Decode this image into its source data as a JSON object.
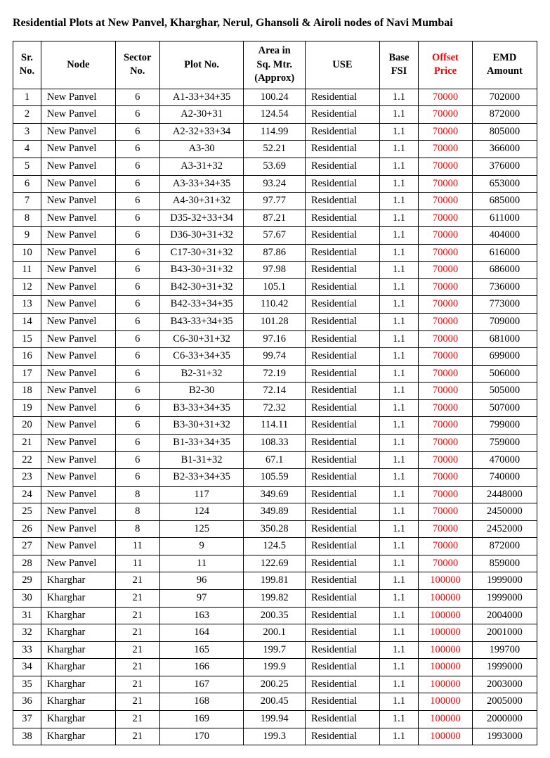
{
  "title": "Residential Plots at New Panvel, Kharghar, Nerul, Ghansoli & Airoli nodes of Navi Mumbai",
  "table": {
    "headers": {
      "sr": "Sr. No.",
      "node": "Node",
      "sector": "Sector No.",
      "plot": "Plot No.",
      "area": "Area in Sq. Mtr. (Approx)",
      "use": "USE",
      "fsi": "Base FSI",
      "offset": "Offset Price",
      "emd": "EMD Amount"
    },
    "offset_color": "#ff0000",
    "rows": [
      {
        "sr": 1,
        "node": "New Panvel",
        "sector": 6,
        "plot": "A1-33+34+35",
        "area": "100.24",
        "use": "Residential",
        "fsi": "1.1",
        "offset": "70000",
        "emd": "702000"
      },
      {
        "sr": 2,
        "node": "New Panvel",
        "sector": 6,
        "plot": "A2-30+31",
        "area": "124.54",
        "use": "Residential",
        "fsi": "1.1",
        "offset": "70000",
        "emd": "872000"
      },
      {
        "sr": 3,
        "node": "New Panvel",
        "sector": 6,
        "plot": "A2-32+33+34",
        "area": "114.99",
        "use": "Residential",
        "fsi": "1.1",
        "offset": "70000",
        "emd": "805000"
      },
      {
        "sr": 4,
        "node": "New Panvel",
        "sector": 6,
        "plot": "A3-30",
        "area": "52.21",
        "use": "Residential",
        "fsi": "1.1",
        "offset": "70000",
        "emd": "366000"
      },
      {
        "sr": 5,
        "node": "New Panvel",
        "sector": 6,
        "plot": "A3-31+32",
        "area": "53.69",
        "use": "Residential",
        "fsi": "1.1",
        "offset": "70000",
        "emd": "376000"
      },
      {
        "sr": 6,
        "node": "New Panvel",
        "sector": 6,
        "plot": "A3-33+34+35",
        "area": "93.24",
        "use": "Residential",
        "fsi": "1.1",
        "offset": "70000",
        "emd": "653000"
      },
      {
        "sr": 7,
        "node": "New Panvel",
        "sector": 6,
        "plot": "A4-30+31+32",
        "area": "97.77",
        "use": "Residential",
        "fsi": "1.1",
        "offset": "70000",
        "emd": "685000"
      },
      {
        "sr": 8,
        "node": "New Panvel",
        "sector": 6,
        "plot": "D35-32+33+34",
        "area": "87.21",
        "use": "Residential",
        "fsi": "1.1",
        "offset": "70000",
        "emd": "611000"
      },
      {
        "sr": 9,
        "node": "New Panvel",
        "sector": 6,
        "plot": "D36-30+31+32",
        "area": "57.67",
        "use": "Residential",
        "fsi": "1.1",
        "offset": "70000",
        "emd": "404000"
      },
      {
        "sr": 10,
        "node": "New Panvel",
        "sector": 6,
        "plot": "C17-30+31+32",
        "area": "87.86",
        "use": "Residential",
        "fsi": "1.1",
        "offset": "70000",
        "emd": "616000"
      },
      {
        "sr": 11,
        "node": "New Panvel",
        "sector": 6,
        "plot": "B43-30+31+32",
        "area": "97.98",
        "use": "Residential",
        "fsi": "1.1",
        "offset": "70000",
        "emd": "686000"
      },
      {
        "sr": 12,
        "node": "New Panvel",
        "sector": 6,
        "plot": "B42-30+31+32",
        "area": "105.1",
        "use": "Residential",
        "fsi": "1.1",
        "offset": "70000",
        "emd": "736000"
      },
      {
        "sr": 13,
        "node": "New Panvel",
        "sector": 6,
        "plot": "B42-33+34+35",
        "area": "110.42",
        "use": "Residential",
        "fsi": "1.1",
        "offset": "70000",
        "emd": "773000"
      },
      {
        "sr": 14,
        "node": "New Panvel",
        "sector": 6,
        "plot": "B43-33+34+35",
        "area": "101.28",
        "use": "Residential",
        "fsi": "1.1",
        "offset": "70000",
        "emd": "709000"
      },
      {
        "sr": 15,
        "node": "New Panvel",
        "sector": 6,
        "plot": "C6-30+31+32",
        "area": "97.16",
        "use": "Residential",
        "fsi": "1.1",
        "offset": "70000",
        "emd": "681000"
      },
      {
        "sr": 16,
        "node": "New Panvel",
        "sector": 6,
        "plot": "C6-33+34+35",
        "area": "99.74",
        "use": "Residential",
        "fsi": "1.1",
        "offset": "70000",
        "emd": "699000"
      },
      {
        "sr": 17,
        "node": "New Panvel",
        "sector": 6,
        "plot": "B2-31+32",
        "area": "72.19",
        "use": "Residential",
        "fsi": "1.1",
        "offset": "70000",
        "emd": "506000"
      },
      {
        "sr": 18,
        "node": "New Panvel",
        "sector": 6,
        "plot": "B2-30",
        "area": "72.14",
        "use": "Residential",
        "fsi": "1.1",
        "offset": "70000",
        "emd": "505000"
      },
      {
        "sr": 19,
        "node": "New Panvel",
        "sector": 6,
        "plot": "B3-33+34+35",
        "area": "72.32",
        "use": "Residential",
        "fsi": "1.1",
        "offset": "70000",
        "emd": "507000"
      },
      {
        "sr": 20,
        "node": "New Panvel",
        "sector": 6,
        "plot": "B3-30+31+32",
        "area": "114.11",
        "use": "Residential",
        "fsi": "1.1",
        "offset": "70000",
        "emd": "799000"
      },
      {
        "sr": 21,
        "node": "New Panvel",
        "sector": 6,
        "plot": "B1-33+34+35",
        "area": "108.33",
        "use": "Residential",
        "fsi": "1.1",
        "offset": "70000",
        "emd": "759000"
      },
      {
        "sr": 22,
        "node": "New Panvel",
        "sector": 6,
        "plot": "B1-31+32",
        "area": "67.1",
        "use": "Residential",
        "fsi": "1.1",
        "offset": "70000",
        "emd": "470000"
      },
      {
        "sr": 23,
        "node": "New Panvel",
        "sector": 6,
        "plot": "B2-33+34+35",
        "area": "105.59",
        "use": "Residential",
        "fsi": "1.1",
        "offset": "70000",
        "emd": "740000"
      },
      {
        "sr": 24,
        "node": "New Panvel",
        "sector": 8,
        "plot": "117",
        "area": "349.69",
        "use": "Residential",
        "fsi": "1.1",
        "offset": "70000",
        "emd": "2448000"
      },
      {
        "sr": 25,
        "node": "New Panvel",
        "sector": 8,
        "plot": "124",
        "area": "349.89",
        "use": "Residential",
        "fsi": "1.1",
        "offset": "70000",
        "emd": "2450000"
      },
      {
        "sr": 26,
        "node": "New Panvel",
        "sector": 8,
        "plot": "125",
        "area": "350.28",
        "use": "Residential",
        "fsi": "1.1",
        "offset": "70000",
        "emd": "2452000"
      },
      {
        "sr": 27,
        "node": "New Panvel",
        "sector": 11,
        "plot": "9",
        "area": "124.5",
        "use": "Residential",
        "fsi": "1.1",
        "offset": "70000",
        "emd": "872000"
      },
      {
        "sr": 28,
        "node": "New Panvel",
        "sector": 11,
        "plot": "11",
        "area": "122.69",
        "use": "Residential",
        "fsi": "1.1",
        "offset": "70000",
        "emd": "859000"
      },
      {
        "sr": 29,
        "node": "Kharghar",
        "sector": 21,
        "plot": "96",
        "area": "199.81",
        "use": "Residential",
        "fsi": "1.1",
        "offset": "100000",
        "emd": "1999000"
      },
      {
        "sr": 30,
        "node": "Kharghar",
        "sector": 21,
        "plot": "97",
        "area": "199.82",
        "use": "Residential",
        "fsi": "1.1",
        "offset": "100000",
        "emd": "1999000"
      },
      {
        "sr": 31,
        "node": "Kharghar",
        "sector": 21,
        "plot": "163",
        "area": "200.35",
        "use": "Residential",
        "fsi": "1.1",
        "offset": "100000",
        "emd": "2004000"
      },
      {
        "sr": 32,
        "node": "Kharghar",
        "sector": 21,
        "plot": "164",
        "area": "200.1",
        "use": "Residential",
        "fsi": "1.1",
        "offset": "100000",
        "emd": "2001000"
      },
      {
        "sr": 33,
        "node": "Kharghar",
        "sector": 21,
        "plot": "165",
        "area": "199.7",
        "use": "Residential",
        "fsi": "1.1",
        "offset": "100000",
        "emd": "199700"
      },
      {
        "sr": 34,
        "node": "Kharghar",
        "sector": 21,
        "plot": "166",
        "area": "199.9",
        "use": "Residential",
        "fsi": "1.1",
        "offset": "100000",
        "emd": "1999000"
      },
      {
        "sr": 35,
        "node": "Kharghar",
        "sector": 21,
        "plot": "167",
        "area": "200.25",
        "use": "Residential",
        "fsi": "1.1",
        "offset": "100000",
        "emd": "2003000"
      },
      {
        "sr": 36,
        "node": "Kharghar",
        "sector": 21,
        "plot": "168",
        "area": "200.45",
        "use": "Residential",
        "fsi": "1.1",
        "offset": "100000",
        "emd": "2005000"
      },
      {
        "sr": 37,
        "node": "Kharghar",
        "sector": 21,
        "plot": "169",
        "area": "199.94",
        "use": "Residential",
        "fsi": "1.1",
        "offset": "100000",
        "emd": "2000000"
      },
      {
        "sr": 38,
        "node": "Kharghar",
        "sector": 21,
        "plot": "170",
        "area": "199.3",
        "use": "Residential",
        "fsi": "1.1",
        "offset": "100000",
        "emd": "1993000"
      }
    ]
  }
}
